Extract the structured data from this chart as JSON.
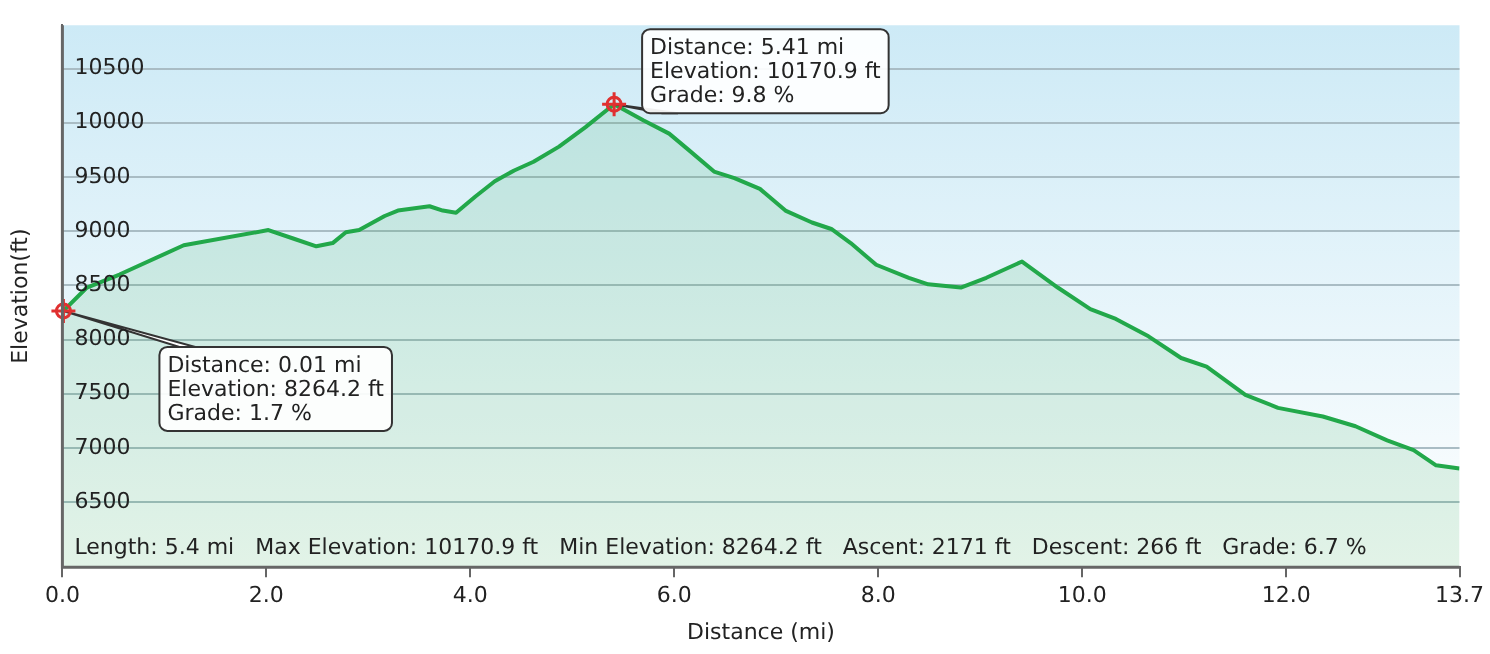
{
  "chart_data": {
    "type": "area",
    "xlabel": "Distance (mi)",
    "ylabel": "Elevation(ft)",
    "x": [
      0.01,
      0.24,
      0.56,
      1.19,
      2.02,
      2.27,
      2.49,
      2.65,
      2.78,
      2.91,
      3.16,
      3.29,
      3.6,
      3.73,
      3.86,
      4.05,
      4.24,
      4.43,
      4.62,
      4.87,
      5.13,
      5.41,
      5.7,
      5.95,
      6.14,
      6.39,
      6.59,
      6.84,
      7.09,
      7.35,
      7.54,
      7.73,
      7.98,
      8.3,
      8.49,
      8.81,
      9.06,
      9.41,
      9.76,
      10.08,
      10.33,
      10.65,
      10.97,
      11.22,
      11.6,
      11.92,
      12.36,
      12.68,
      12.99,
      13.25,
      13.47,
      13.7
    ],
    "series": [
      {
        "color": "#22a84a",
        "values": [
          8264.2,
          8480,
          8600,
          8870,
          9010,
          8930,
          8860,
          8890,
          8990,
          9010,
          9140,
          9190,
          9230,
          9190,
          9170,
          9320,
          9460,
          9560,
          9640,
          9780,
          9960,
          10170.9,
          10020,
          9900,
          9750,
          9550,
          9490,
          9390,
          9190,
          9080,
          9020,
          8890,
          8690,
          8570,
          8510,
          8480,
          8570,
          8720,
          8480,
          8280,
          8190,
          8030,
          7830,
          7750,
          7490,
          7370,
          7290,
          7200,
          7070,
          6980,
          6840,
          6810
        ]
      }
    ],
    "xlim": [
      0,
      13.7
    ],
    "ylim": [
      5900,
      10900
    ],
    "xticks": [
      {
        "value": 0,
        "label": "0.0"
      },
      {
        "value": 2,
        "label": "2.0"
      },
      {
        "value": 4,
        "label": "4.0"
      },
      {
        "value": 6,
        "label": "6.0"
      },
      {
        "value": 8,
        "label": "8.0"
      },
      {
        "value": 10,
        "label": "10.0"
      },
      {
        "value": 12,
        "label": "12.0"
      },
      13.7
    ],
    "yticks": [
      6500,
      7000,
      7500,
      8000,
      8500,
      9000,
      9500,
      10000,
      10500
    ],
    "grid": "y",
    "legend": false,
    "marker": "none",
    "annotations": [
      {
        "text": "Distance: 0.01 mi\nElevation: 8264.2 ft\nGrade: 1.7 %",
        "x": 0.01,
        "y": 8264.2
      },
      {
        "text": "Distance: 5.41 mi\nElevation: 10170.9 ft\nGrade: 9.8 %",
        "x": 5.41,
        "y": 10170.9
      },
      "Length: 5.4 mi   Max Elevation: 10170.9 ft   Min Elevation: 8264.2 ft   Ascent: 2171 ft   Descent: 266 ft   Grade: 6.7 %"
    ]
  }
}
